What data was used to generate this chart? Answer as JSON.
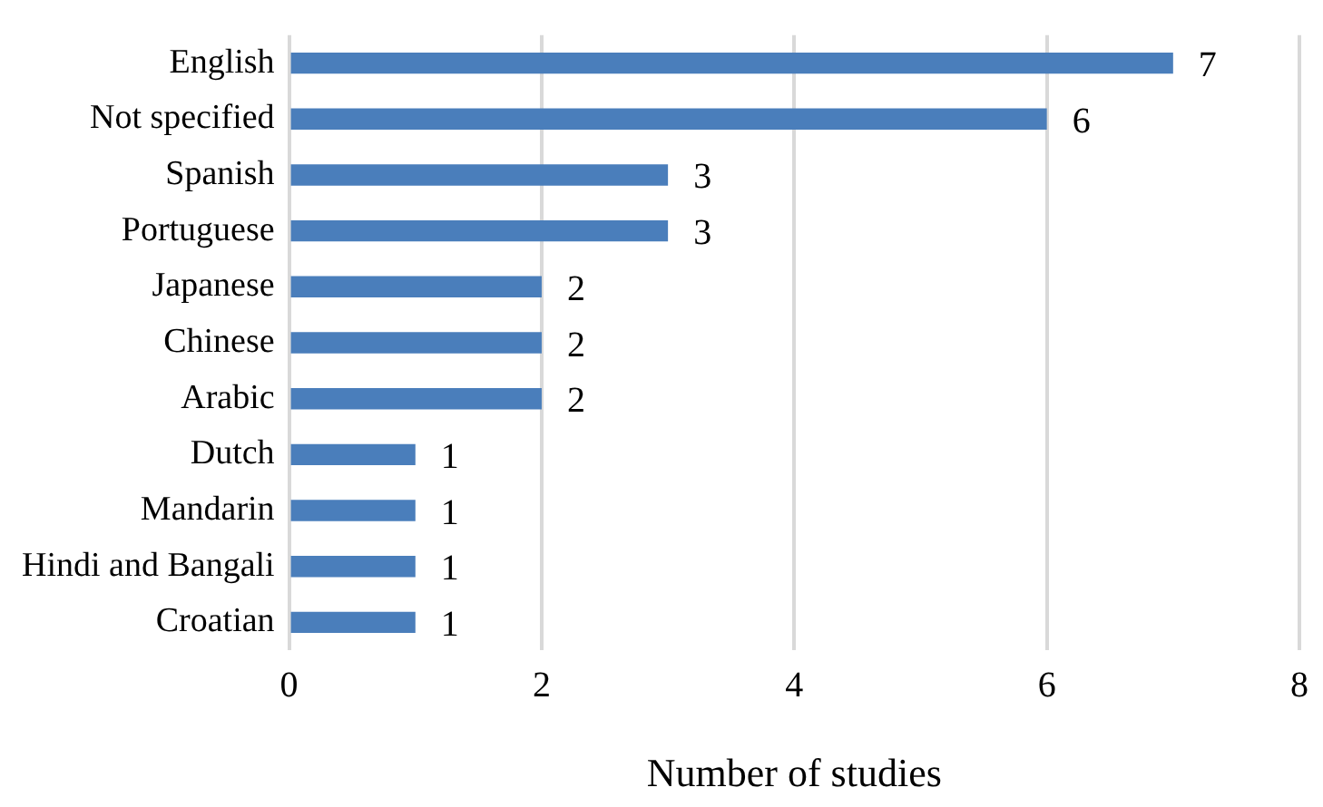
{
  "chart_data": {
    "type": "bar",
    "orientation": "horizontal",
    "xlabel": "Number of studies",
    "categories": [
      "English",
      "Not specified",
      "Spanish",
      "Portuguese",
      "Japanese",
      "Chinese",
      "Arabic",
      "Dutch",
      "Mandarin",
      "Hindi and Bangali",
      "Croatian"
    ],
    "values": [
      7,
      6,
      3,
      3,
      2,
      2,
      2,
      1,
      1,
      1,
      1
    ],
    "color": "#4a7ebb",
    "xlim": [
      0,
      8
    ],
    "xticks": [
      0,
      2,
      4,
      6,
      8
    ],
    "grid": "x",
    "data_labels": true,
    "legend": false
  }
}
